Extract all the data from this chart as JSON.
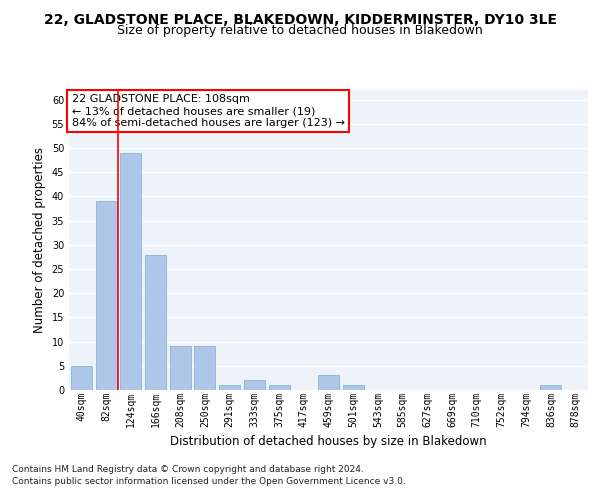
{
  "title1": "22, GLADSTONE PLACE, BLAKEDOWN, KIDDERMINSTER, DY10 3LE",
  "title2": "Size of property relative to detached houses in Blakedown",
  "xlabel": "Distribution of detached houses by size in Blakedown",
  "ylabel": "Number of detached properties",
  "bar_labels": [
    "40sqm",
    "82sqm",
    "124sqm",
    "166sqm",
    "208sqm",
    "250sqm",
    "291sqm",
    "333sqm",
    "375sqm",
    "417sqm",
    "459sqm",
    "501sqm",
    "543sqm",
    "585sqm",
    "627sqm",
    "669sqm",
    "710sqm",
    "752sqm",
    "794sqm",
    "836sqm",
    "878sqm"
  ],
  "bar_values": [
    5,
    39,
    49,
    28,
    9,
    9,
    1,
    2,
    1,
    0,
    3,
    1,
    0,
    0,
    0,
    0,
    0,
    0,
    0,
    1,
    0
  ],
  "bar_color": "#aec6e8",
  "bar_edge_color": "#7aafd4",
  "red_line_index": 2,
  "annotation_text": "22 GLADSTONE PLACE: 108sqm\n← 13% of detached houses are smaller (19)\n84% of semi-detached houses are larger (123) →",
  "annotation_box_color": "white",
  "annotation_box_edge": "red",
  "ylim": [
    0,
    62
  ],
  "yticks": [
    0,
    5,
    10,
    15,
    20,
    25,
    30,
    35,
    40,
    45,
    50,
    55,
    60
  ],
  "footer1": "Contains HM Land Registry data © Crown copyright and database right 2024.",
  "footer2": "Contains public sector information licensed under the Open Government Licence v3.0.",
  "bg_color": "#eef2f9",
  "grid_color": "#ffffff",
  "title1_fontsize": 10,
  "title2_fontsize": 9,
  "axis_label_fontsize": 8.5,
  "tick_fontsize": 7,
  "annotation_fontsize": 8,
  "footer_fontsize": 6.5
}
